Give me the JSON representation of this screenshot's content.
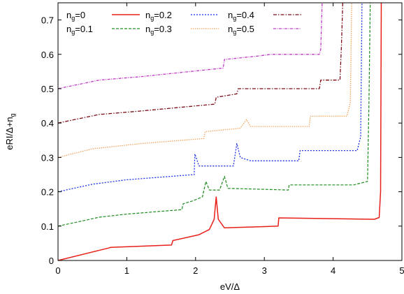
{
  "chart_data": {
    "type": "line",
    "title": "",
    "xlabel": "eV/Δ",
    "ylabel": {
      "main": "eRI/Δ+n",
      "sub": "g"
    },
    "xlim": [
      0,
      5
    ],
    "ylim": [
      0,
      0.75
    ],
    "x_ticks": [
      {
        "value": 0,
        "label": "0"
      },
      {
        "value": 1,
        "label": "1"
      },
      {
        "value": 2,
        "label": "2"
      },
      {
        "value": 3,
        "label": "3"
      },
      {
        "value": 4,
        "label": "4"
      },
      {
        "value": 5,
        "label": "5"
      }
    ],
    "y_ticks": [
      {
        "value": 0,
        "label": "0"
      },
      {
        "value": 0.1,
        "label": "0.1"
      },
      {
        "value": 0.2,
        "label": "0.2"
      },
      {
        "value": 0.3,
        "label": "0.3"
      },
      {
        "value": 0.4,
        "label": "0.4"
      },
      {
        "value": 0.5,
        "label": "0.5"
      },
      {
        "value": 0.6,
        "label": "0.6"
      },
      {
        "value": 0.7,
        "label": "0.7"
      }
    ],
    "grid": false,
    "legend_position": "top-left inside",
    "series": [
      {
        "name": {
          "main": "n",
          "sub": "g",
          "rest": "=0"
        },
        "color": "#e8201a",
        "dash": "",
        "width": 1.5,
        "points": [
          [
            0,
            0
          ],
          [
            0.75,
            0.037
          ],
          [
            0.76,
            0.038
          ],
          [
            1.65,
            0.045
          ],
          [
            1.67,
            0.058
          ],
          [
            2.05,
            0.075
          ],
          [
            2.2,
            0.09
          ],
          [
            2.27,
            0.12
          ],
          [
            2.3,
            0.185
          ],
          [
            2.33,
            0.12
          ],
          [
            2.42,
            0.095
          ],
          [
            3.2,
            0.1
          ],
          [
            3.21,
            0.124
          ],
          [
            4.6,
            0.12
          ],
          [
            4.67,
            0.125
          ],
          [
            4.69,
            0.2
          ],
          [
            4.7,
            0.75
          ]
        ]
      },
      {
        "name": {
          "main": "n",
          "sub": "g",
          "rest": "=0.1"
        },
        "color": "#1e8c1e",
        "dash": "4,2",
        "width": 1.2,
        "points": [
          [
            0,
            0.1
          ],
          [
            0.4,
            0.117
          ],
          [
            0.6,
            0.126
          ],
          [
            1.0,
            0.135
          ],
          [
            1.8,
            0.148
          ],
          [
            1.82,
            0.165
          ],
          [
            1.95,
            0.173
          ],
          [
            2.1,
            0.185
          ],
          [
            2.15,
            0.23
          ],
          [
            2.2,
            0.205
          ],
          [
            2.35,
            0.205
          ],
          [
            2.42,
            0.245
          ],
          [
            2.47,
            0.21
          ],
          [
            3.35,
            0.205
          ],
          [
            3.36,
            0.22
          ],
          [
            4.3,
            0.22
          ],
          [
            4.5,
            0.23
          ],
          [
            4.52,
            0.45
          ],
          [
            4.54,
            0.75
          ]
        ]
      },
      {
        "name": {
          "main": "n",
          "sub": "g",
          "rest": "=0.2"
        },
        "color": "#1a2fe6",
        "dash": "2,2",
        "width": 1.3,
        "points": [
          [
            0,
            0.2
          ],
          [
            0.5,
            0.222
          ],
          [
            1.0,
            0.235
          ],
          [
            1.98,
            0.25
          ],
          [
            1.99,
            0.31
          ],
          [
            2.05,
            0.275
          ],
          [
            2.55,
            0.275
          ],
          [
            2.6,
            0.34
          ],
          [
            2.65,
            0.3
          ],
          [
            2.8,
            0.29
          ],
          [
            3.5,
            0.29
          ],
          [
            3.52,
            0.32
          ],
          [
            4.35,
            0.32
          ],
          [
            4.4,
            0.36
          ],
          [
            4.42,
            0.75
          ]
        ]
      },
      {
        "name": {
          "main": "n",
          "sub": "g",
          "rest": "=0.3"
        },
        "color": "#f2a35c",
        "dash": "1.5,1.5",
        "width": 1.3,
        "points": [
          [
            0,
            0.3
          ],
          [
            0.5,
            0.325
          ],
          [
            1.2,
            0.34
          ],
          [
            2.12,
            0.355
          ],
          [
            2.14,
            0.375
          ],
          [
            2.65,
            0.385
          ],
          [
            2.74,
            0.41
          ],
          [
            2.8,
            0.39
          ],
          [
            3.65,
            0.39
          ],
          [
            3.67,
            0.42
          ],
          [
            4.2,
            0.42
          ],
          [
            4.25,
            0.46
          ],
          [
            4.27,
            0.75
          ]
        ]
      },
      {
        "name": {
          "main": "n",
          "sub": "g",
          "rest": "=0.4"
        },
        "color": "#7a0c14",
        "dash": "5,2,1.5,2",
        "width": 1.3,
        "points": [
          [
            0,
            0.4
          ],
          [
            0.6,
            0.425
          ],
          [
            1.2,
            0.435
          ],
          [
            2.28,
            0.455
          ],
          [
            2.3,
            0.475
          ],
          [
            2.6,
            0.485
          ],
          [
            2.62,
            0.5
          ],
          [
            3.8,
            0.5
          ],
          [
            3.82,
            0.525
          ],
          [
            4.1,
            0.525
          ],
          [
            4.12,
            0.62
          ],
          [
            4.14,
            0.75
          ]
        ]
      },
      {
        "name": {
          "main": "n",
          "sub": "g",
          "rest": "=0.5"
        },
        "color": "#c23cc8",
        "dash": "4,1.5,1,1.5",
        "width": 1.3,
        "points": [
          [
            0,
            0.5
          ],
          [
            0.6,
            0.525
          ],
          [
            1.2,
            0.535
          ],
          [
            2.4,
            0.56
          ],
          [
            2.42,
            0.585
          ],
          [
            2.9,
            0.595
          ],
          [
            3.1,
            0.6
          ],
          [
            3.8,
            0.6
          ],
          [
            3.82,
            0.615
          ],
          [
            3.84,
            0.75
          ]
        ]
      }
    ]
  }
}
